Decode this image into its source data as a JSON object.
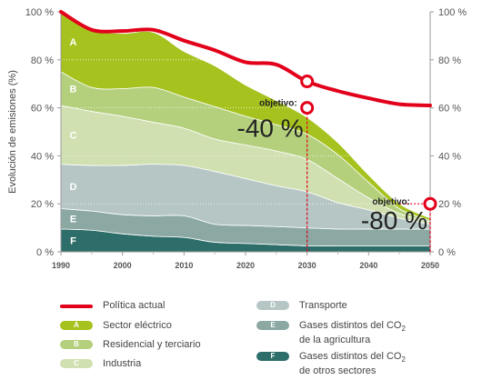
{
  "chart_data": {
    "type": "area",
    "ylabel": "Evolución de emisiones (%)",
    "xlabel": "",
    "x": [
      1990,
      1995,
      2000,
      2005,
      2010,
      2015,
      2020,
      2025,
      2030,
      2035,
      2040,
      2045,
      2050
    ],
    "x_ticks": [
      "1990",
      "2000",
      "2010",
      "2020",
      "2030",
      "2040",
      "2050"
    ],
    "x_tick_values": [
      1990,
      2000,
      2010,
      2020,
      2030,
      2040,
      2050
    ],
    "y_ticks": [
      "0 %",
      "20 %",
      "40 %",
      "60 %",
      "80 %",
      "100 %"
    ],
    "y_tick_values": [
      0,
      20,
      40,
      60,
      80,
      100
    ],
    "ylim": [
      0,
      100
    ],
    "xlim": [
      1990,
      2050
    ],
    "grid": "horizontal",
    "series": [
      {
        "key": "F",
        "name": "Gases distintos del CO2 de otros sectores",
        "color": "#2e6e6a",
        "values": [
          9.5,
          9,
          7.5,
          6.5,
          6,
          4,
          3.5,
          3,
          2.5,
          2.5,
          2.5,
          2.5,
          2.5
        ]
      },
      {
        "key": "E",
        "name": "Gases distintos del CO2 de la agricultura",
        "color": "#8ba8a3",
        "values": [
          8.5,
          8,
          8,
          8.5,
          9,
          7.5,
          7.5,
          7.5,
          7.5,
          7,
          7,
          7,
          7
        ]
      },
      {
        "key": "D",
        "name": "Transporte",
        "color": "#b5c6c4",
        "values": [
          18.5,
          19,
          20.5,
          21.5,
          21,
          22,
          19.5,
          17,
          15,
          11,
          8,
          4.5,
          2
        ]
      },
      {
        "key": "C",
        "name": "Industria",
        "color": "#d0e0b0",
        "values": [
          24.5,
          22.5,
          20.5,
          17.5,
          15.5,
          13.5,
          14,
          14.5,
          13.5,
          10,
          5,
          2,
          1
        ]
      },
      {
        "key": "B",
        "name": "Residencial y terciario",
        "color": "#b4d07c",
        "values": [
          14,
          10,
          11.5,
          14.5,
          13,
          13.5,
          12,
          11,
          10.5,
          10,
          6.5,
          2,
          0.5
        ]
      },
      {
        "key": "A",
        "name": "Sector eléctrico",
        "color": "#a6c21e",
        "values": [
          25,
          24,
          23,
          23,
          19,
          17,
          13,
          10,
          7,
          5,
          3,
          2,
          1
        ]
      }
    ],
    "policy_line": {
      "name": "Política actual",
      "color": "#e2001a",
      "x": [
        1990,
        1995,
        2000,
        2005,
        2010,
        2015,
        2020,
        2025,
        2030,
        2035,
        2040,
        2045,
        2050
      ],
      "values": [
        100,
        92.5,
        92,
        92.5,
        88,
        84,
        79,
        78,
        71,
        67,
        64,
        61.5,
        61
      ]
    },
    "targets": [
      {
        "label": "objetivo:",
        "value_text": "-40 %",
        "x": 2030,
        "y": 60
      },
      {
        "label": "objetivo:",
        "value_text": "-80 %",
        "x": 2050,
        "y": 20
      }
    ],
    "policy_markers": [
      {
        "x": 2030,
        "y": 71
      }
    ]
  },
  "legend": [
    {
      "key": "",
      "name": "Política actual",
      "type": "line",
      "color": "#e2001a"
    },
    {
      "key": "A",
      "name": "Sector eléctrico",
      "type": "swatch",
      "color": "#a6c21e"
    },
    {
      "key": "B",
      "name": "Residencial y terciario",
      "type": "swatch",
      "color": "#b4d07c"
    },
    {
      "key": "C",
      "name": "Industria",
      "type": "swatch",
      "color": "#d0e0b0"
    },
    {
      "key": "D",
      "name": "Transporte",
      "type": "swatch",
      "color": "#b5c6c4"
    },
    {
      "key": "E",
      "name": "Gases distintos del CO",
      "sub": "2",
      "line2": "de la agricultura",
      "type": "swatch",
      "color": "#8ba8a3"
    },
    {
      "key": "F",
      "name": "Gases distintos del CO",
      "sub": "2",
      "line2": "de otros sectores",
      "type": "swatch",
      "color": "#2e6e6a"
    }
  ]
}
